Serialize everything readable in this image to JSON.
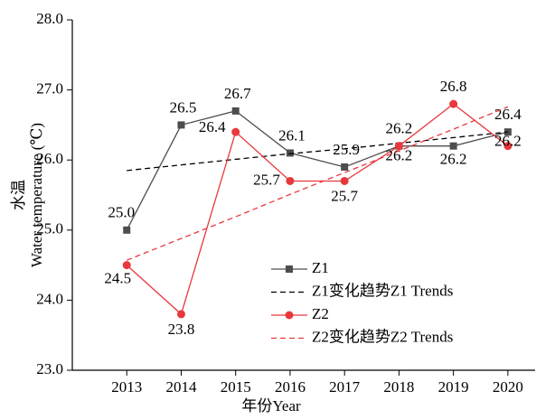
{
  "chart_data": {
    "type": "line",
    "xlabel": "年份Year",
    "ylabel": [
      "水温",
      "Water temperature (℃)"
    ],
    "x": [
      2013,
      2014,
      2015,
      2016,
      2017,
      2018,
      2019,
      2020
    ],
    "xlim": [
      2012.0,
      2020.5
    ],
    "xticks": [
      2013,
      2014,
      2015,
      2016,
      2017,
      2018,
      2019,
      2020
    ],
    "ylim": [
      23.0,
      28.0
    ],
    "yticks": [
      {
        "value": 23.0,
        "label": "23.0"
      },
      {
        "value": 24.0,
        "label": "24.0"
      },
      {
        "value": 25.0,
        "label": "25.0"
      },
      {
        "value": 26.0,
        "label": "26.0"
      },
      {
        "value": 27.0,
        "label": "27.0"
      },
      {
        "value": 28.0,
        "label": "28.0"
      }
    ],
    "legend": "lower right",
    "series": [
      {
        "name": "Z1",
        "color": "#4d4d4d",
        "marker": "square",
        "dash": false,
        "values": [
          25.0,
          26.5,
          26.7,
          26.1,
          25.9,
          26.2,
          26.2,
          26.4
        ],
        "value_labels": [
          "25.0",
          "26.5",
          "26.7",
          "26.1",
          "25.9",
          "26.2",
          "26.2",
          "26.4"
        ]
      },
      {
        "name": "Z1变化趋势Z1 Trends",
        "color": "#000000",
        "marker": "none",
        "dash": true,
        "values": [
          25.85,
          25.93,
          26.01,
          26.09,
          26.16,
          26.24,
          26.32,
          26.4
        ]
      },
      {
        "name": "Z2",
        "color": "#e8383d",
        "marker": "circle",
        "dash": false,
        "values": [
          24.5,
          23.8,
          26.4,
          25.7,
          25.7,
          26.2,
          26.8,
          26.2
        ],
        "value_labels": [
          "24.5",
          "23.8",
          "26.4",
          "25.7",
          "25.7",
          "26.2",
          "26.8",
          "26.2"
        ]
      },
      {
        "name": "Z2变化趋势Z2 Trends",
        "color": "#e8383d",
        "marker": "none",
        "dash": true,
        "values": [
          24.57,
          24.88,
          25.19,
          25.51,
          25.82,
          26.13,
          26.44,
          26.76
        ]
      }
    ]
  }
}
